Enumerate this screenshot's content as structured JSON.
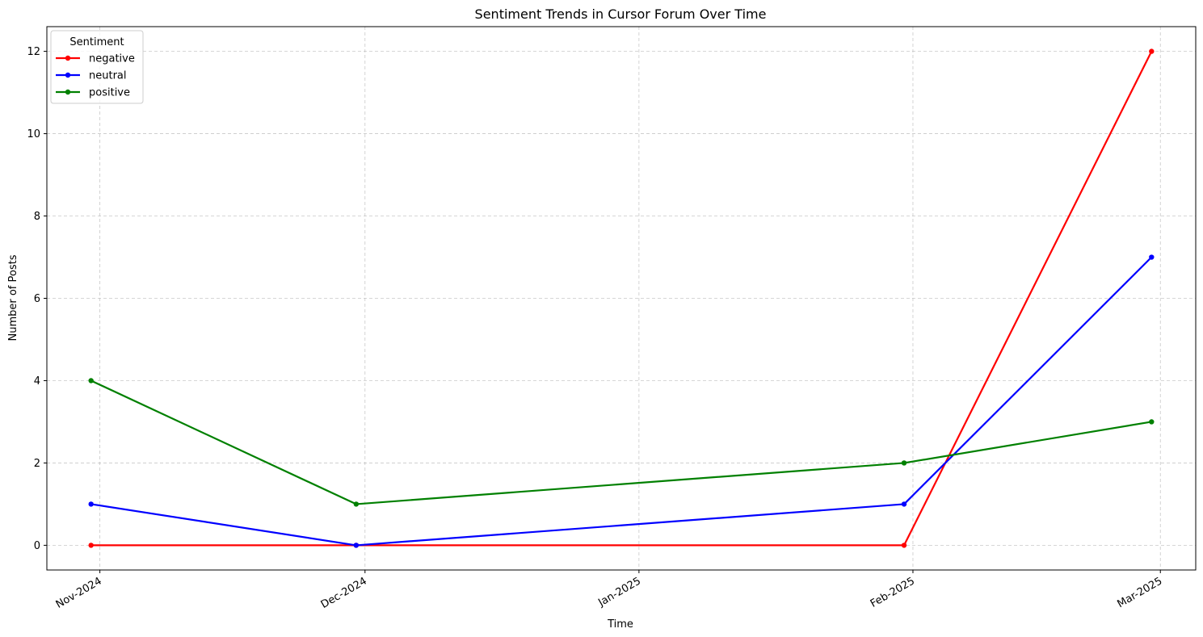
{
  "chart_data": {
    "type": "line",
    "title": "Sentiment Trends in Cursor Forum Over Time",
    "xlabel": "Time",
    "ylabel": "Number of Posts",
    "x": [
      "2024-10-31",
      "2024-11-30",
      "2025-01-31",
      "2025-02-28"
    ],
    "x_ticks": [
      {
        "date": "2024-11-01",
        "label": "Nov-2024"
      },
      {
        "date": "2024-12-01",
        "label": "Dec-2024"
      },
      {
        "date": "2025-01-01",
        "label": "Jan-2025"
      },
      {
        "date": "2025-02-01",
        "label": "Feb-2025"
      },
      {
        "date": "2025-03-01",
        "label": "Mar-2025"
      }
    ],
    "xlim": [
      "2024-10-26",
      "2025-03-05"
    ],
    "y_ticks": [
      0,
      2,
      4,
      6,
      8,
      10,
      12
    ],
    "ylim": [
      -0.6,
      12.6
    ],
    "grid": true,
    "legend": {
      "title": "Sentiment",
      "placement": "top-left"
    },
    "series": [
      {
        "name": "negative",
        "color": "#ff0000",
        "values": [
          0,
          0,
          0,
          12
        ]
      },
      {
        "name": "neutral",
        "color": "#0000ff",
        "values": [
          1,
          0,
          1,
          7
        ]
      },
      {
        "name": "positive",
        "color": "#008000",
        "values": [
          4,
          1,
          2,
          3
        ]
      }
    ]
  }
}
